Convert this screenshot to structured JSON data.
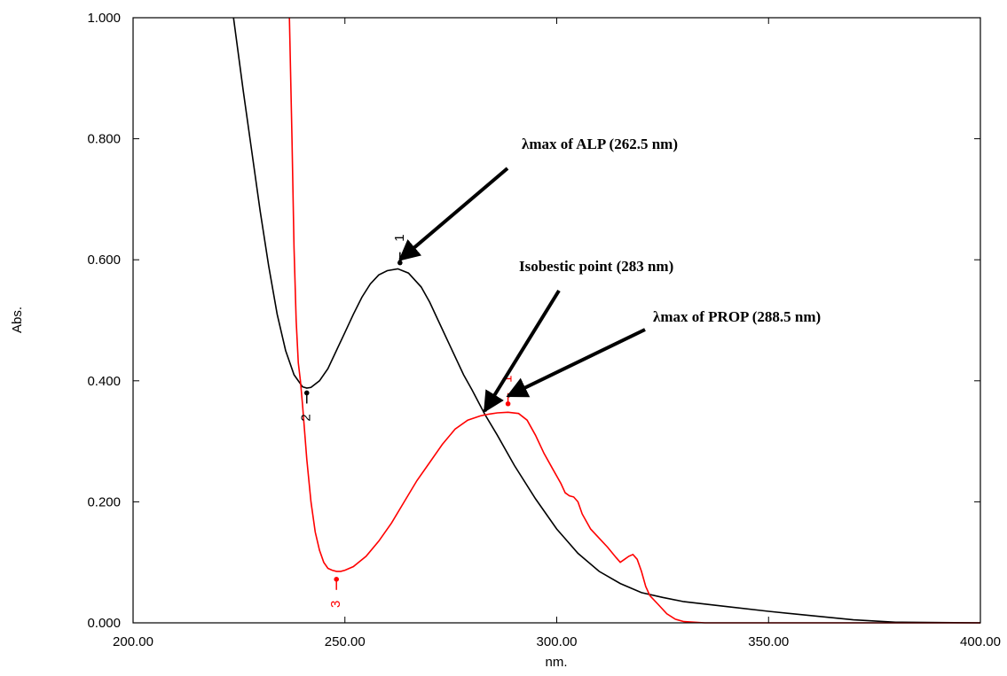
{
  "chart_data": {
    "type": "line",
    "xlabel": "nm.",
    "ylabel": "Abs.",
    "xlim": [
      200,
      400
    ],
    "ylim": [
      0,
      1
    ],
    "x_ticks": [
      "200.00",
      "250.00",
      "300.00",
      "350.00",
      "400.00"
    ],
    "y_ticks": [
      "0.000",
      "0.200",
      "0.400",
      "0.600",
      "0.800",
      "1.000"
    ],
    "grid": false,
    "series": [
      {
        "color": "#000000",
        "points": [
          [
            223.7,
            1.0
          ],
          [
            226,
            0.88
          ],
          [
            228,
            0.78
          ],
          [
            230,
            0.68
          ],
          [
            232,
            0.59
          ],
          [
            234,
            0.51
          ],
          [
            236,
            0.45
          ],
          [
            238,
            0.41
          ],
          [
            240,
            0.39
          ],
          [
            241,
            0.388
          ],
          [
            242,
            0.389
          ],
          [
            244,
            0.4
          ],
          [
            246,
            0.42
          ],
          [
            248,
            0.45
          ],
          [
            250,
            0.48
          ],
          [
            252,
            0.51
          ],
          [
            254,
            0.538
          ],
          [
            256,
            0.56
          ],
          [
            258,
            0.575
          ],
          [
            260,
            0.582
          ],
          [
            262.5,
            0.585
          ],
          [
            265,
            0.578
          ],
          [
            268,
            0.555
          ],
          [
            270,
            0.53
          ],
          [
            272,
            0.5
          ],
          [
            275,
            0.455
          ],
          [
            278,
            0.41
          ],
          [
            280,
            0.385
          ],
          [
            283,
            0.345
          ],
          [
            286,
            0.31
          ],
          [
            290,
            0.26
          ],
          [
            295,
            0.205
          ],
          [
            300,
            0.155
          ],
          [
            305,
            0.115
          ],
          [
            310,
            0.085
          ],
          [
            315,
            0.065
          ],
          [
            320,
            0.05
          ],
          [
            325,
            0.042
          ],
          [
            330,
            0.035
          ],
          [
            340,
            0.027
          ],
          [
            350,
            0.019
          ],
          [
            360,
            0.012
          ],
          [
            370,
            0.005
          ],
          [
            380,
            0.001
          ],
          [
            400,
            0.0
          ]
        ]
      },
      {
        "color": "#ff0000",
        "points": [
          [
            236.9,
            1.0
          ],
          [
            237.5,
            0.8
          ],
          [
            238,
            0.62
          ],
          [
            238.5,
            0.5
          ],
          [
            239,
            0.43
          ],
          [
            239.5,
            0.4
          ],
          [
            240,
            0.36
          ],
          [
            241,
            0.27
          ],
          [
            242,
            0.2
          ],
          [
            243,
            0.15
          ],
          [
            244,
            0.12
          ],
          [
            245,
            0.1
          ],
          [
            246,
            0.09
          ],
          [
            247,
            0.087
          ],
          [
            248,
            0.085
          ],
          [
            249,
            0.085
          ],
          [
            250,
            0.087
          ],
          [
            252,
            0.093
          ],
          [
            255,
            0.11
          ],
          [
            258,
            0.135
          ],
          [
            261,
            0.165
          ],
          [
            264,
            0.2
          ],
          [
            267,
            0.235
          ],
          [
            270,
            0.265
          ],
          [
            273,
            0.295
          ],
          [
            276,
            0.32
          ],
          [
            279,
            0.335
          ],
          [
            282,
            0.342
          ],
          [
            284,
            0.345
          ],
          [
            286,
            0.347
          ],
          [
            288.5,
            0.348
          ],
          [
            291,
            0.346
          ],
          [
            293,
            0.335
          ],
          [
            295,
            0.31
          ],
          [
            297,
            0.28
          ],
          [
            299,
            0.255
          ],
          [
            301,
            0.23
          ],
          [
            302,
            0.215
          ],
          [
            303,
            0.21
          ],
          [
            304,
            0.208
          ],
          [
            305,
            0.2
          ],
          [
            306,
            0.18
          ],
          [
            308,
            0.155
          ],
          [
            310,
            0.14
          ],
          [
            312,
            0.125
          ],
          [
            314,
            0.108
          ],
          [
            315,
            0.1
          ],
          [
            316,
            0.105
          ],
          [
            317,
            0.11
          ],
          [
            318,
            0.113
          ],
          [
            319,
            0.105
          ],
          [
            320,
            0.085
          ],
          [
            321,
            0.06
          ],
          [
            322,
            0.045
          ],
          [
            324,
            0.03
          ],
          [
            326,
            0.015
          ],
          [
            328,
            0.006
          ],
          [
            330,
            0.002
          ],
          [
            335,
            0.0
          ],
          [
            400,
            0.0
          ]
        ]
      }
    ],
    "peak_markers": [
      {
        "label": "1",
        "x": 263.0,
        "y": 0.595,
        "color": "#000000",
        "side": "up"
      },
      {
        "label": "2",
        "x": 241.0,
        "y": 0.38,
        "color": "#000000",
        "side": "down"
      },
      {
        "label": "1",
        "x": 288.5,
        "y": 0.362,
        "color": "#ff0000",
        "side": "up"
      },
      {
        "label": "3",
        "x": 248.0,
        "y": 0.072,
        "color": "#ff0000",
        "side": "down"
      }
    ],
    "annotations": [
      {
        "text": "λmax of ALP (262.5 nm)",
        "point_at": [
          263.0,
          0.6
        ]
      },
      {
        "text": "Isobestic point (283 nm)",
        "point_at": [
          283.0,
          0.35
        ]
      },
      {
        "text": "λmax of PROP (288.5 nm)",
        "point_at": [
          288.5,
          0.375
        ]
      }
    ]
  }
}
